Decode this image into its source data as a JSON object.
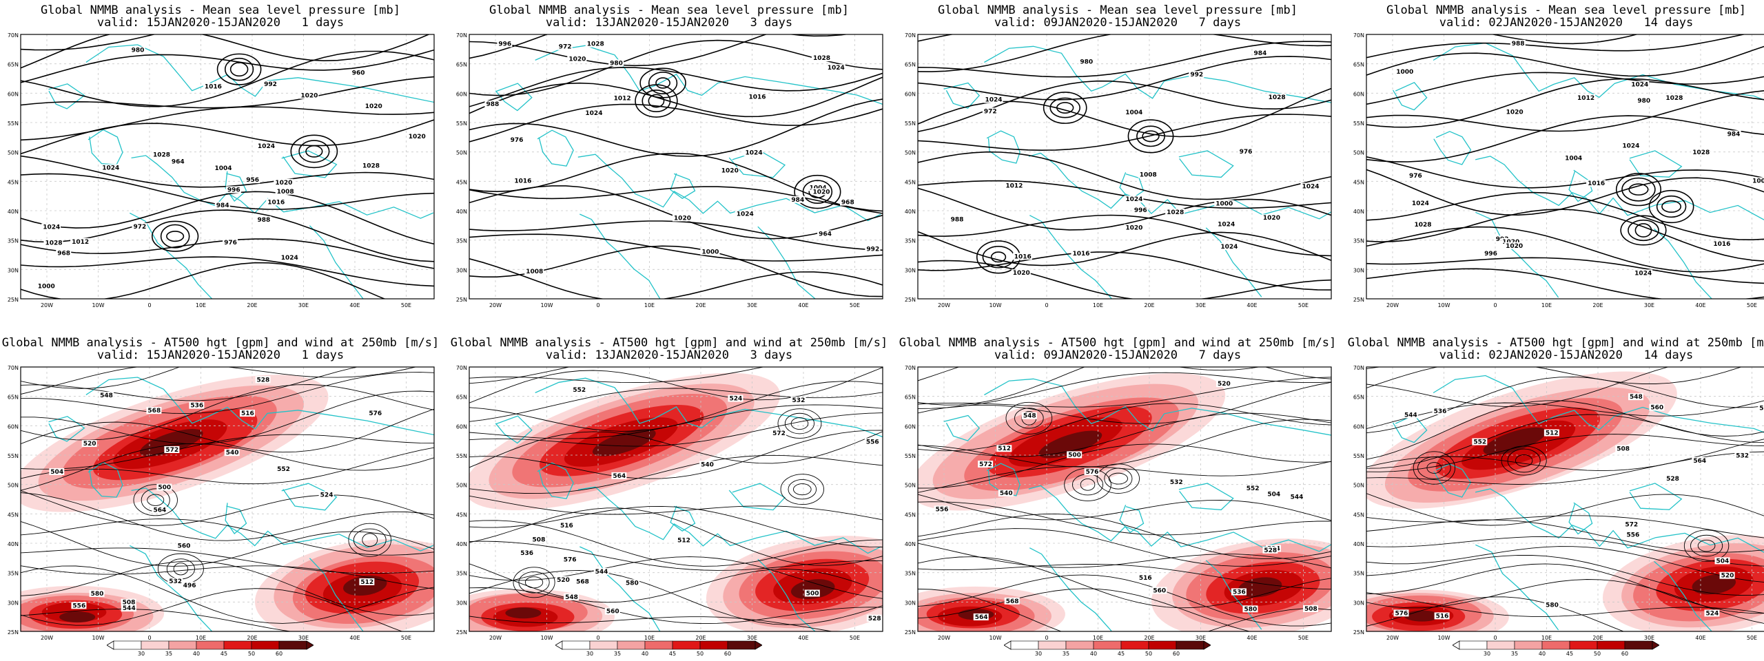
{
  "colors": {
    "coast": "#22c2c8",
    "contour": "#000000",
    "grid": "#c8c8c8",
    "wind": [
      "#ffffff",
      "#fad2d2",
      "#f4a3a3",
      "#ee6b6b",
      "#e01818",
      "#c00000",
      "#5a0a0a"
    ]
  },
  "map": {
    "lat_labels": [
      "70N",
      "65N",
      "60N",
      "55N",
      "50N",
      "45N",
      "40N",
      "35N",
      "30N",
      "25N"
    ],
    "lon_labels": [
      "20W",
      "10W",
      "0",
      "10E",
      "20E",
      "30E",
      "40E",
      "50E"
    ]
  },
  "colorbar": {
    "ticks": [
      "30",
      "35",
      "40",
      "45",
      "50",
      "60"
    ]
  },
  "rows": [
    {
      "title": "Global NMMB analysis - Mean sea level pressure [mb]",
      "panels": [
        {
          "valid": "valid: 15JAN2020-15JAN2020   1 days",
          "labels": [
            "972",
            "968",
            "964",
            "960",
            "956",
            "984",
            "976",
            "980",
            "988",
            "992",
            "996",
            "1000",
            "1004",
            "1008",
            "1012",
            "1016",
            "1020",
            "1024",
            "1028",
            "1020",
            "1024",
            "1028",
            "1020",
            "1024",
            "1028",
            "1016",
            "1020",
            "1024"
          ]
        },
        {
          "valid": "valid: 13JAN2020-15JAN2020   3 days",
          "labels": [
            "972",
            "968",
            "964",
            "980",
            "984",
            "976",
            "988",
            "992",
            "996",
            "1000",
            "1004",
            "1008",
            "1012",
            "1016",
            "1020",
            "1024",
            "1028",
            "1024",
            "1020",
            "1024",
            "1028",
            "1024",
            "1020",
            "1016",
            "1020"
          ]
        },
        {
          "valid": "valid: 09JAN2020-15JAN2020   7 days",
          "labels": [
            "972",
            "976",
            "980",
            "984",
            "988",
            "992",
            "996",
            "1000",
            "1004",
            "1008",
            "1012",
            "1016",
            "1020",
            "1024",
            "1024",
            "1028",
            "1024",
            "1028",
            "1020",
            "1024",
            "1024",
            "1020",
            "1016"
          ]
        },
        {
          "valid": "valid: 02JAN2020-15JAN2020   14 days",
          "labels": [
            "976",
            "980",
            "984",
            "988",
            "992",
            "996",
            "1000",
            "1004",
            "1008",
            "1012",
            "1016",
            "1020",
            "1024",
            "1028",
            "1024",
            "1028",
            "1024",
            "1020",
            "1016",
            "1020",
            "1024",
            "1028"
          ]
        }
      ]
    },
    {
      "title": "Global NMMB analysis - AT500 hgt [gpm] and wind at 250mb [m/s]",
      "panels": [
        {
          "valid": "valid: 15JAN2020-15JAN2020   1 days",
          "labels": [
            "500",
            "496",
            "504",
            "508",
            "512",
            "516",
            "520",
            "524",
            "528",
            "532",
            "536",
            "540",
            "544",
            "548",
            "552",
            "556",
            "560",
            "564",
            "568",
            "572",
            "576",
            "580"
          ]
        },
        {
          "valid": "valid: 13JAN2020-15JAN2020   3 days",
          "labels": [
            "500",
            "508",
            "512",
            "516",
            "520",
            "524",
            "528",
            "532",
            "536",
            "540",
            "544",
            "548",
            "552",
            "556",
            "560",
            "564",
            "568",
            "572",
            "576",
            "580"
          ]
        },
        {
          "valid": "valid: 09JAN2020-15JAN2020   7 days",
          "labels": [
            "500",
            "504",
            "508",
            "512",
            "516",
            "520",
            "524",
            "528",
            "532",
            "536",
            "540",
            "544",
            "548",
            "552",
            "556",
            "560",
            "564",
            "568",
            "572",
            "576",
            "580"
          ]
        },
        {
          "valid": "valid: 02JAN2020-15JAN2020   14 days",
          "labels": [
            "504",
            "508",
            "512",
            "516",
            "520",
            "524",
            "528",
            "532",
            "536",
            "540",
            "544",
            "548",
            "552",
            "556",
            "560",
            "564",
            "568",
            "572",
            "576",
            "580"
          ]
        }
      ]
    }
  ]
}
